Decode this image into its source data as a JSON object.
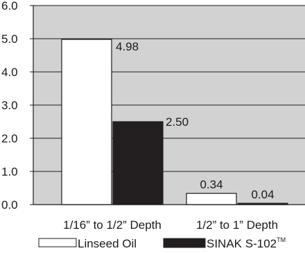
{
  "chart_data": {
    "type": "bar",
    "categories": [
      "1/16” to 1/2” Depth",
      "1/2” to 1” Depth"
    ],
    "series": [
      {
        "name": "Linseed Oil",
        "values": [
          4.98,
          0.34
        ],
        "labels": [
          "4.98",
          "0.34"
        ],
        "color": "#ffffff"
      },
      {
        "name": "SINAK S-102",
        "name_sup": "TM",
        "values": [
          2.5,
          0.04
        ],
        "labels": [
          "2.50",
          "0.04"
        ],
        "color": "#231f20"
      }
    ],
    "y_ticks": [
      "0.0",
      "1.0",
      "2.0",
      "3.0",
      "4.0",
      "5.0",
      "6.0"
    ],
    "ylim": [
      0,
      6
    ],
    "grid": true,
    "legend_position": "bottom",
    "plot_background": "#d2d2d2",
    "title": "",
    "xlabel": "",
    "ylabel": ""
  }
}
